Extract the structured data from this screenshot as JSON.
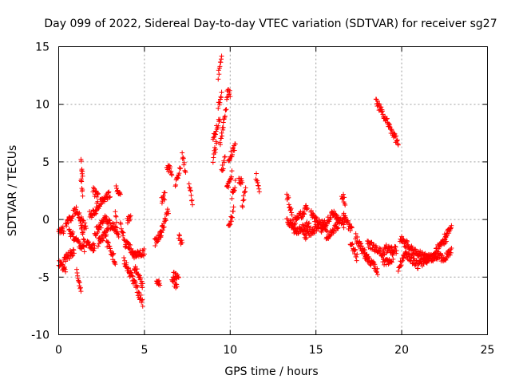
{
  "chart_data": {
    "type": "scatter",
    "title": "Day 099 of 2022, Sidereal Day-to-day VTEC variation (SDTVAR) for receiver sg27",
    "xlabel": "GPS time / hours",
    "ylabel": "SDTVAR / TECUs",
    "xlim": [
      0,
      25
    ],
    "ylim": [
      -10,
      15
    ],
    "xticks": [
      0,
      5,
      10,
      15,
      20,
      25
    ],
    "xtick_labels": [
      "0",
      "5",
      "10",
      "15",
      "20",
      "25"
    ],
    "yticks": [
      -10,
      -5,
      0,
      5,
      10,
      15
    ],
    "ytick_labels": [
      "-10",
      "-5",
      "0",
      "5",
      "10",
      "15"
    ],
    "grid": true,
    "marker": "+",
    "color": "#ff0000",
    "segments": [
      {
        "x": [
          0.0,
          0.3
        ],
        "y": [
          -0.8,
          -1.0
        ]
      },
      {
        "x": [
          0.0,
          0.4
        ],
        "y": [
          -3.8,
          -4.5
        ]
      },
      {
        "x": [
          0.3,
          0.9
        ],
        "y": [
          -3.5,
          -2.7
        ]
      },
      {
        "x": [
          0.4,
          1.0
        ],
        "y": [
          -0.5,
          0.8
        ]
      },
      {
        "x": [
          0.6,
          1.5
        ],
        "y": [
          -1.0,
          -2.6
        ]
      },
      {
        "x": [
          1.0,
          1.6
        ],
        "y": [
          0.8,
          -0.8
        ]
      },
      {
        "x": [
          1.05,
          1.3
        ],
        "y": [
          -4.3,
          -6.2
        ]
      },
      {
        "x": [
          1.3,
          1.5
        ],
        "y": [
          -0.5,
          -2.0
        ]
      },
      {
        "x": [
          1.3,
          1.4
        ],
        "y": [
          4.9,
          3.9
        ]
      },
      {
        "x": [
          1.3,
          1.4
        ],
        "y": [
          3.4,
          2.2
        ]
      },
      {
        "x": [
          1.6,
          2.1
        ],
        "y": [
          -2.0,
          -2.5
        ]
      },
      {
        "x": [
          1.8,
          2.2
        ],
        "y": [
          0.4,
          0.8
        ]
      },
      {
        "x": [
          2.0,
          2.3
        ],
        "y": [
          2.5,
          1.9
        ]
      },
      {
        "x": [
          2.1,
          2.7
        ],
        "y": [
          -1.2,
          0.0
        ]
      },
      {
        "x": [
          2.2,
          3.0
        ],
        "y": [
          1.1,
          2.2
        ]
      },
      {
        "x": [
          2.3,
          2.9
        ],
        "y": [
          -2.0,
          -1.0
        ]
      },
      {
        "x": [
          2.8,
          3.3
        ],
        "y": [
          -2.0,
          -3.6
        ]
      },
      {
        "x": [
          2.7,
          3.4
        ],
        "y": [
          0.0,
          -1.0
        ]
      },
      {
        "x": [
          3.3,
          3.5
        ],
        "y": [
          0.5,
          -1.8
        ]
      },
      {
        "x": [
          3.35,
          3.6
        ],
        "y": [
          2.9,
          2.2
        ]
      },
      {
        "x": [
          3.6,
          3.9
        ],
        "y": [
          -0.5,
          -2.2
        ]
      },
      {
        "x": [
          3.8,
          4.2
        ],
        "y": [
          -3.6,
          -4.8
        ]
      },
      {
        "x": [
          3.9,
          4.4
        ],
        "y": [
          -2.0,
          -3.0
        ]
      },
      {
        "x": [
          4.0,
          4.2
        ],
        "y": [
          -0.2,
          0.3
        ]
      },
      {
        "x": [
          4.2,
          4.9
        ],
        "y": [
          -4.8,
          -7.2
        ]
      },
      {
        "x": [
          4.3,
          5.0
        ],
        "y": [
          -3.0,
          -2.8
        ]
      },
      {
        "x": [
          4.4,
          4.9
        ],
        "y": [
          -4.0,
          -5.8
        ]
      },
      {
        "x": [
          5.6,
          6.0
        ],
        "y": [
          -2.0,
          -1.0
        ]
      },
      {
        "x": [
          5.7,
          5.9
        ],
        "y": [
          -5.2,
          -5.6
        ]
      },
      {
        "x": [
          5.9,
          6.4
        ],
        "y": [
          -1.5,
          0.8
        ]
      },
      {
        "x": [
          6.0,
          6.2
        ],
        "y": [
          1.7,
          2.1
        ]
      },
      {
        "x": [
          6.3,
          6.6
        ],
        "y": [
          4.7,
          4.0
        ]
      },
      {
        "x": [
          6.6,
          6.9
        ],
        "y": [
          -5.0,
          -6.0
        ]
      },
      {
        "x": [
          6.7,
          7.0
        ],
        "y": [
          -4.8,
          -5.2
        ]
      },
      {
        "x": [
          6.8,
          7.1
        ],
        "y": [
          3.0,
          4.5
        ]
      },
      {
        "x": [
          7.0,
          7.2
        ],
        "y": [
          -1.5,
          -2.0
        ]
      },
      {
        "x": [
          7.2,
          7.4
        ],
        "y": [
          5.7,
          4.2
        ]
      },
      {
        "x": [
          7.6,
          7.8
        ],
        "y": [
          2.8,
          1.5
        ]
      },
      {
        "x": [
          9.0,
          9.2
        ],
        "y": [
          5.0,
          6.8
        ]
      },
      {
        "x": [
          9.0,
          9.4
        ],
        "y": [
          7.0,
          8.9
        ]
      },
      {
        "x": [
          9.3,
          9.5
        ],
        "y": [
          12.5,
          13.9
        ]
      },
      {
        "x": [
          9.3,
          9.5
        ],
        "y": [
          9.8,
          11.0
        ]
      },
      {
        "x": [
          9.4,
          9.6
        ],
        "y": [
          6.5,
          8.0
        ]
      },
      {
        "x": [
          9.5,
          9.7
        ],
        "y": [
          4.2,
          5.2
        ]
      },
      {
        "x": [
          9.6,
          9.8
        ],
        "y": [
          8.5,
          10.1
        ]
      },
      {
        "x": [
          9.8,
          10.0
        ],
        "y": [
          10.9,
          11.0
        ]
      },
      {
        "x": [
          9.8,
          10.1
        ],
        "y": [
          2.6,
          4.0
        ]
      },
      {
        "x": [
          9.9,
          10.2
        ],
        "y": [
          -0.7,
          0.8
        ]
      },
      {
        "x": [
          9.9,
          10.3
        ],
        "y": [
          5.0,
          6.5
        ]
      },
      {
        "x": [
          10.1,
          10.3
        ],
        "y": [
          2.0,
          3.1
        ]
      },
      {
        "x": [
          10.5,
          10.7
        ],
        "y": [
          3.5,
          3.2
        ]
      },
      {
        "x": [
          10.7,
          10.9
        ],
        "y": [
          1.2,
          2.7
        ]
      },
      {
        "x": [
          11.5,
          11.7
        ],
        "y": [
          3.8,
          2.5
        ]
      },
      {
        "x": [
          13.3,
          13.6
        ],
        "y": [
          2.1,
          0.5
        ]
      },
      {
        "x": [
          13.3,
          13.8
        ],
        "y": [
          0.0,
          -1.0
        ]
      },
      {
        "x": [
          13.5,
          14.5
        ],
        "y": [
          -0.5,
          1.0
        ]
      },
      {
        "x": [
          13.8,
          14.6
        ],
        "y": [
          -1.0,
          -0.5
        ]
      },
      {
        "x": [
          14.3,
          15.2
        ],
        "y": [
          -1.5,
          -0.5
        ]
      },
      {
        "x": [
          14.7,
          15.6
        ],
        "y": [
          0.5,
          -0.8
        ]
      },
      {
        "x": [
          15.3,
          16.0
        ],
        "y": [
          -0.8,
          0.5
        ]
      },
      {
        "x": [
          15.6,
          16.3
        ],
        "y": [
          -1.5,
          -0.5
        ]
      },
      {
        "x": [
          16.0,
          16.7
        ],
        "y": [
          0.5,
          -0.5
        ]
      },
      {
        "x": [
          16.5,
          16.7
        ],
        "y": [
          2.2,
          1.6
        ]
      },
      {
        "x": [
          16.6,
          17.1
        ],
        "y": [
          0.3,
          -1.0
        ]
      },
      {
        "x": [
          17.0,
          17.4
        ],
        "y": [
          -2.0,
          -3.3
        ]
      },
      {
        "x": [
          17.3,
          18.0
        ],
        "y": [
          -1.5,
          -3.5
        ]
      },
      {
        "x": [
          17.8,
          18.6
        ],
        "y": [
          -2.8,
          -4.5
        ]
      },
      {
        "x": [
          18.0,
          19.0
        ],
        "y": [
          -2.0,
          -3.0
        ]
      },
      {
        "x": [
          18.5,
          19.8
        ],
        "y": [
          10.3,
          6.6
        ]
      },
      {
        "x": [
          18.9,
          19.5
        ],
        "y": [
          -3.8,
          -3.3
        ]
      },
      {
        "x": [
          19.0,
          19.7
        ],
        "y": [
          -2.5,
          -2.7
        ]
      },
      {
        "x": [
          19.8,
          20.2
        ],
        "y": [
          -4.2,
          -3.0
        ]
      },
      {
        "x": [
          19.9,
          20.6
        ],
        "y": [
          -1.6,
          -2.6
        ]
      },
      {
        "x": [
          20.2,
          21.0
        ],
        "y": [
          -3.0,
          -4.0
        ]
      },
      {
        "x": [
          20.6,
          21.4
        ],
        "y": [
          -2.8,
          -3.2
        ]
      },
      {
        "x": [
          21.0,
          22.0
        ],
        "y": [
          -3.8,
          -3.2
        ]
      },
      {
        "x": [
          21.3,
          22.3
        ],
        "y": [
          -3.5,
          -3.0
        ]
      },
      {
        "x": [
          22.0,
          22.6
        ],
        "y": [
          -2.6,
          -1.8
        ]
      },
      {
        "x": [
          22.3,
          22.9
        ],
        "y": [
          -3.5,
          -2.8
        ]
      },
      {
        "x": [
          22.5,
          22.9
        ],
        "y": [
          -1.6,
          -0.6
        ]
      }
    ]
  }
}
